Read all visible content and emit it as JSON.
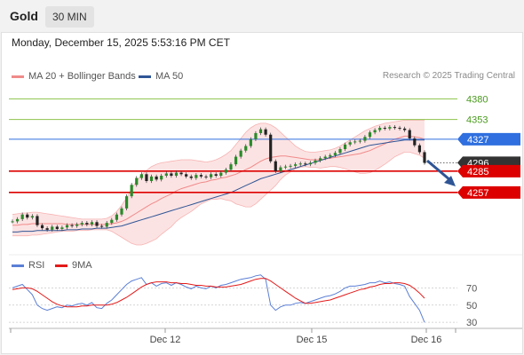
{
  "header": {
    "instrument": "Gold",
    "timeframe": "30 MIN"
  },
  "datetime": "Monday, December 15, 2025 5:53:16 PM CET",
  "legend": {
    "ma20": {
      "label": "MA 20 + Bollinger Bands",
      "color": "#f08a8a"
    },
    "ma50": {
      "label": "MA 50",
      "color": "#2f5596"
    }
  },
  "credit": "Research © 2025 Trading Central",
  "rsi_legend": {
    "rsi": {
      "label": "RSI",
      "color": "#5b7fd6"
    },
    "ma9": {
      "label": "9MA",
      "color": "#e31a1a"
    }
  },
  "chart_data": [
    {
      "type": "candlestick",
      "yrange": [
        4195,
        4398
      ],
      "x_labels": [
        "Dec 12",
        "Dec 15",
        "Dec 16"
      ],
      "levels": [
        {
          "label": "4380",
          "value": 4380,
          "kind": "resistance",
          "color": "#8bc34a"
        },
        {
          "label": "4353",
          "value": 4353,
          "kind": "resistance",
          "color": "#8bc34a"
        },
        {
          "label": "4327",
          "value": 4327,
          "kind": "pivot",
          "color": "#2f6fdf"
        },
        {
          "label": "4296",
          "value": 4296,
          "kind": "last",
          "color": "#333333"
        },
        {
          "label": "4285",
          "value": 4285,
          "kind": "support",
          "color": "#dd0000"
        },
        {
          "label": "4257",
          "value": 4257,
          "kind": "support",
          "color": "#dd0000"
        }
      ],
      "closes": [
        4219,
        4222,
        4228,
        4224,
        4226,
        4214,
        4210,
        4208,
        4212,
        4209,
        4211,
        4214,
        4213,
        4215,
        4217,
        4215,
        4218,
        4213,
        4212,
        4217,
        4221,
        4228,
        4236,
        4252,
        4267,
        4276,
        4281,
        4272,
        4278,
        4274,
        4279,
        4282,
        4279,
        4283,
        4281,
        4278,
        4276,
        4280,
        4278,
        4277,
        4281,
        4279,
        4283,
        4287,
        4294,
        4304,
        4312,
        4318,
        4327,
        4335,
        4340,
        4333,
        4298,
        4285,
        4290,
        4291,
        4292,
        4294,
        4295,
        4294,
        4296,
        4299,
        4302,
        4304,
        4306,
        4309,
        4314,
        4320,
        4323,
        4324,
        4325,
        4330,
        4336,
        4339,
        4342,
        4341,
        4343,
        4342,
        4341,
        4339,
        4328,
        4319,
        4310,
        4296
      ],
      "ma20": [
        4214,
        4214,
        4215,
        4215,
        4216,
        4216,
        4216,
        4216,
        4216,
        4216,
        4216,
        4215,
        4215,
        4215,
        4215,
        4215,
        4215,
        4215,
        4215,
        4215,
        4216,
        4217,
        4219,
        4222,
        4226,
        4230,
        4234,
        4238,
        4242,
        4245,
        4249,
        4252,
        4255,
        4259,
        4262,
        4264,
        4266,
        4268,
        4270,
        4271,
        4273,
        4274,
        4276,
        4277,
        4279,
        4281,
        4284,
        4287,
        4290,
        4294,
        4298,
        4301,
        4303,
        4304,
        4305,
        4305,
        4304,
        4303,
        4302,
        4301,
        4300,
        4300,
        4300,
        4301,
        4302,
        4303,
        4304,
        4305,
        4306,
        4307,
        4308,
        4310,
        4312,
        4315,
        4318,
        4321,
        4324,
        4327,
        4329,
        4331,
        4331,
        4330,
        4329,
        4327
      ],
      "bb_upper": [
        4228,
        4229,
        4230,
        4230,
        4231,
        4231,
        4230,
        4229,
        4228,
        4227,
        4226,
        4225,
        4224,
        4223,
        4222,
        4222,
        4222,
        4222,
        4222,
        4223,
        4226,
        4232,
        4240,
        4250,
        4262,
        4272,
        4280,
        4286,
        4291,
        4294,
        4296,
        4297,
        4298,
        4299,
        4300,
        4300,
        4300,
        4299,
        4298,
        4297,
        4298,
        4300,
        4303,
        4307,
        4312,
        4320,
        4328,
        4336,
        4342,
        4346,
        4348,
        4348,
        4346,
        4342,
        4336,
        4330,
        4324,
        4318,
        4314,
        4311,
        4310,
        4310,
        4311,
        4312,
        4313,
        4315,
        4318,
        4322,
        4326,
        4330,
        4334,
        4338,
        4341,
        4344,
        4346,
        4348,
        4349,
        4350,
        4351,
        4352,
        4352,
        4352,
        4352,
        4352
      ],
      "bb_lower": [
        4200,
        4200,
        4200,
        4200,
        4201,
        4201,
        4202,
        4203,
        4204,
        4205,
        4206,
        4206,
        4206,
        4207,
        4207,
        4207,
        4208,
        4208,
        4208,
        4208,
        4206,
        4202,
        4198,
        4194,
        4190,
        4188,
        4188,
        4190,
        4193,
        4196,
        4202,
        4207,
        4212,
        4219,
        4224,
        4228,
        4232,
        4237,
        4242,
        4245,
        4248,
        4248,
        4249,
        4247,
        4246,
        4242,
        4240,
        4238,
        4238,
        4242,
        4248,
        4254,
        4260,
        4266,
        4274,
        4280,
        4284,
        4288,
        4290,
        4291,
        4290,
        4290,
        4289,
        4290,
        4291,
        4291,
        4290,
        4288,
        4286,
        4284,
        4282,
        4282,
        4283,
        4286,
        4290,
        4294,
        4299,
        4304,
        4307,
        4310,
        4310,
        4308,
        4306,
        4302
      ],
      "ma50": [
        4205,
        4205,
        4206,
        4206,
        4206,
        4207,
        4207,
        4207,
        4207,
        4207,
        4207,
        4208,
        4208,
        4208,
        4209,
        4209,
        4209,
        4210,
        4210,
        4210,
        4211,
        4212,
        4213,
        4215,
        4217,
        4219,
        4221,
        4223,
        4225,
        4227,
        4229,
        4231,
        4233,
        4235,
        4237,
        4239,
        4241,
        4243,
        4245,
        4247,
        4249,
        4251,
        4253,
        4255,
        4257,
        4260,
        4263,
        4266,
        4269,
        4272,
        4275,
        4277,
        4279,
        4281,
        4283,
        4285,
        4287,
        4289,
        4291,
        4293,
        4295,
        4297,
        4299,
        4301,
        4303,
        4305,
        4307,
        4309,
        4311,
        4313,
        4315,
        4317,
        4319,
        4320,
        4321,
        4322,
        4323,
        4324,
        4325,
        4326,
        4326,
        4326,
        4326,
        4326
      ]
    },
    {
      "type": "line",
      "yrange": [
        25,
        90
      ],
      "y_ticks": [
        "70",
        "50",
        "30"
      ],
      "series": [
        {
          "name": "RSI",
          "color": "#5b7fd6",
          "values": [
            70,
            72,
            74,
            68,
            62,
            50,
            46,
            44,
            46,
            48,
            47,
            50,
            49,
            51,
            52,
            50,
            53,
            47,
            46,
            52,
            56,
            62,
            68,
            74,
            78,
            80,
            82,
            74,
            76,
            72,
            75,
            76,
            73,
            76,
            74,
            71,
            69,
            72,
            70,
            69,
            72,
            70,
            73,
            74,
            76,
            78,
            80,
            81,
            82,
            84,
            85,
            80,
            50,
            44,
            48,
            50,
            50,
            52,
            53,
            52,
            54,
            56,
            58,
            60,
            61,
            63,
            66,
            70,
            72,
            72,
            73,
            74,
            76,
            76,
            78,
            76,
            77,
            75,
            74,
            72,
            60,
            52,
            44,
            30
          ]
        },
        {
          "name": "9MA",
          "color": "#e31a1a",
          "values": [
            68,
            69,
            70,
            70,
            69,
            66,
            62,
            58,
            54,
            51,
            49,
            48,
            48,
            48,
            49,
            49,
            50,
            50,
            50,
            50,
            51,
            53,
            56,
            59,
            63,
            67,
            71,
            74,
            76,
            77,
            77,
            77,
            76,
            76,
            75,
            75,
            74,
            73,
            73,
            72,
            72,
            71,
            71,
            71,
            72,
            73,
            74,
            76,
            78,
            80,
            81,
            81,
            78,
            74,
            70,
            66,
            62,
            58,
            55,
            52,
            52,
            53,
            54,
            55,
            56,
            58,
            60,
            62,
            64,
            66,
            68,
            69,
            71,
            72,
            74,
            75,
            75,
            76,
            76,
            75,
            73,
            69,
            64,
            58
          ]
        }
      ]
    }
  ]
}
